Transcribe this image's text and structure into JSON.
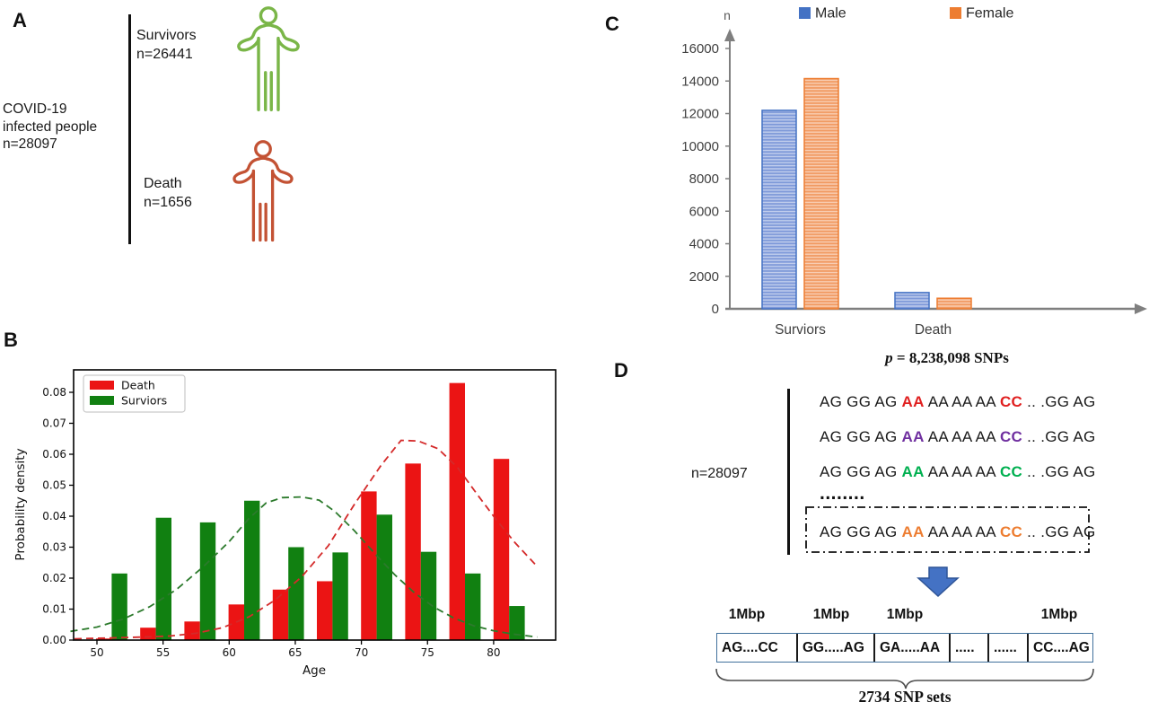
{
  "panels": {
    "A": {
      "label": "A",
      "group_lines": [
        "COVID-19",
        "infected people",
        "n=28097"
      ],
      "branches": [
        {
          "lines": [
            "Survivors",
            "n=26441"
          ],
          "color": "#7AB648"
        },
        {
          "lines": [
            "Death",
            "n=1656"
          ],
          "color": "#C35234"
        }
      ]
    },
    "B": {
      "label": "B"
    },
    "C": {
      "label": "C",
      "p_var": "p",
      "p_rest": " = 8,238,098 SNPs"
    },
    "D": {
      "label": "D",
      "n_label": "n=28097",
      "dots": "........",
      "sequence_rows": [
        {
          "pre": "AG GG AG ",
          "v1": "AA",
          "mid": " AA AA AA ",
          "v2": "CC",
          "suf": " .. .GG AG",
          "color": "#E02020",
          "boxed": false
        },
        {
          "pre": "AG GG AG ",
          "v1": "AA",
          "mid": " AA AA AA ",
          "v2": "CC",
          "suf": " .. .GG AG",
          "color": "#7030A0",
          "boxed": false
        },
        {
          "pre": "AG GG AG ",
          "v1": "AA",
          "mid": " AA AA AA ",
          "v2": "CC",
          "suf": " .. .GG AG",
          "color": "#00B050",
          "boxed": false
        },
        {
          "pre": "AG GG AG ",
          "v1": "AA",
          "mid": " AA AA AA ",
          "v2": "CC",
          "suf": " .. .GG AG",
          "color": "#ED7D31",
          "boxed": true
        }
      ],
      "mbp_labels": [
        "1Mbp",
        "1Mbp",
        "1Mbp",
        "1Mbp"
      ],
      "snp_cells": [
        "AG....CC",
        "GG.....AG",
        "GA.....AA",
        ".....",
        "......",
        "CC....AG"
      ],
      "brace_label": "2734 SNP sets",
      "arrow_color": "#4472C4",
      "arrow_border": "#2F5597",
      "box_border": "#41719C"
    }
  },
  "chart_data": [
    {
      "id": "age-density-histogram",
      "type": "bar",
      "title": "",
      "xlabel": "Age",
      "ylabel": "Probability density",
      "xlim": [
        47.5,
        84.5
      ],
      "ylim": [
        0,
        0.087
      ],
      "xticks": [
        50,
        55,
        60,
        65,
        70,
        75,
        80
      ],
      "yticks": [
        0.0,
        0.01,
        0.02,
        0.03,
        0.04,
        0.05,
        0.06,
        0.07,
        0.08
      ],
      "bin_centers": [
        51.1,
        54.5,
        57.8,
        61.1,
        64.5,
        67.8,
        71.2,
        74.5,
        77.9,
        81.2
      ],
      "series": [
        {
          "name": "Death",
          "color": "#EB1414",
          "values": [
            0.0005,
            0.004,
            0.006,
            0.0115,
            0.0163,
            0.019,
            0.048,
            0.057,
            0.083,
            0.0585
          ]
        },
        {
          "name": "Surviors",
          "color": "#118011",
          "values": [
            0.0215,
            0.0395,
            0.038,
            0.045,
            0.03,
            0.0283,
            0.0405,
            0.0285,
            0.0215,
            0.011
          ]
        }
      ],
      "curves": [
        {
          "name": "Death density curve",
          "color": "#D42A2A",
          "points": [
            [
              48.3,
              0.0004
            ],
            [
              51,
              0.0007
            ],
            [
              53.5,
              0.001
            ],
            [
              55.5,
              0.0013
            ],
            [
              57.5,
              0.0022
            ],
            [
              59.5,
              0.004
            ],
            [
              61.5,
              0.0075
            ],
            [
              63.5,
              0.013
            ],
            [
              65.5,
              0.0205
            ],
            [
              67.5,
              0.0305
            ],
            [
              69.5,
              0.044
            ],
            [
              71.5,
              0.0565
            ],
            [
              73,
              0.0645
            ],
            [
              74.3,
              0.0643
            ],
            [
              75.8,
              0.0618
            ],
            [
              77.3,
              0.0556
            ],
            [
              78.8,
              0.0468
            ],
            [
              80.2,
              0.0389
            ],
            [
              81.6,
              0.0315
            ],
            [
              83.2,
              0.0242
            ]
          ]
        },
        {
          "name": "Surviors density curve",
          "color": "#2C7A2C",
          "points": [
            [
              48,
              0.0028
            ],
            [
              50,
              0.0042
            ],
            [
              52,
              0.0068
            ],
            [
              54,
              0.0108
            ],
            [
              56,
              0.0163
            ],
            [
              58,
              0.0235
            ],
            [
              60,
              0.0318
            ],
            [
              61.5,
              0.0393
            ],
            [
              62.8,
              0.0443
            ],
            [
              64,
              0.046
            ],
            [
              65.5,
              0.0462
            ],
            [
              66.8,
              0.0452
            ],
            [
              68,
              0.0415
            ],
            [
              69.5,
              0.0352
            ],
            [
              71,
              0.028
            ],
            [
              72.5,
              0.0212
            ],
            [
              74,
              0.0153
            ],
            [
              75.5,
              0.0106
            ],
            [
              77,
              0.0071
            ],
            [
              78.5,
              0.0046
            ],
            [
              80,
              0.003
            ],
            [
              81.5,
              0.0019
            ],
            [
              83.3,
              0.001
            ]
          ]
        }
      ],
      "legend_position": "upper left",
      "grid": false
    },
    {
      "id": "sex-counts-bar",
      "type": "bar",
      "categories": [
        "Surviors",
        "Death"
      ],
      "series": [
        {
          "name": "Male",
          "color": "#4472C4",
          "fill": "#7E99D9",
          "values": [
            12200,
            1000
          ]
        },
        {
          "name": "Female",
          "color": "#ED7D31",
          "fill": "#F19A62",
          "values": [
            14150,
            650
          ]
        }
      ],
      "ylabel": "n",
      "ylim": [
        0,
        16000
      ],
      "yticks": [
        0,
        2000,
        4000,
        6000,
        8000,
        10000,
        12000,
        14000,
        16000
      ],
      "legend_position": "top right",
      "hatch": "horizontal",
      "grid": false
    }
  ]
}
